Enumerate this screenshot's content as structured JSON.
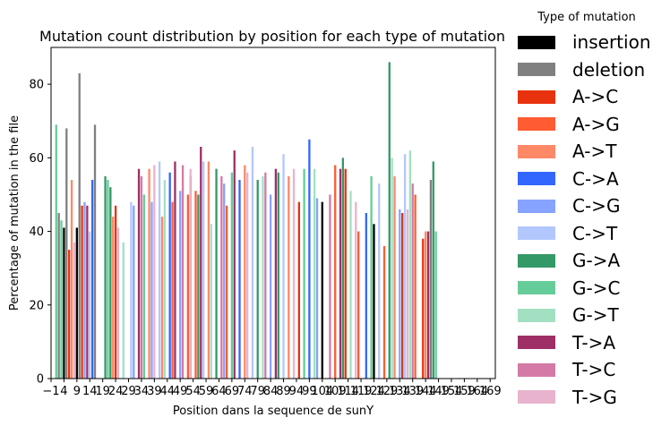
{
  "chart_data": {
    "type": "bar",
    "stacked": false,
    "title": "Mutation count distribution by position for each type of mutation",
    "xlabel": "Position dans la sequence de sunY",
    "ylabel": "Percentage of mutation in the file",
    "xlim": [
      -1,
      171
    ],
    "ylim": [
      0,
      90
    ],
    "grid": false,
    "legend_position": "outside-right",
    "legend_title": "Type of mutation",
    "x_ticks": [
      -1,
      4,
      9,
      14,
      19,
      24,
      29,
      34,
      39,
      44,
      49,
      54,
      59,
      64,
      69,
      74,
      79,
      84,
      89,
      94,
      99,
      104,
      109,
      114,
      119,
      124,
      129,
      134,
      139,
      144,
      149,
      154,
      159,
      164,
      169
    ],
    "x_tick_labels": [
      "−1",
      "4",
      "9",
      "14",
      "19",
      "24",
      "29",
      "34",
      "39",
      "44",
      "49",
      "54",
      "59",
      "64",
      "69",
      "74",
      "79",
      "84",
      "89",
      "94",
      "99",
      "104",
      "109",
      "114",
      "119",
      "124",
      "129",
      "134",
      "139",
      "144",
      "149",
      "154",
      "159",
      "164",
      "169"
    ],
    "y_ticks": [
      0,
      20,
      40,
      60,
      80
    ],
    "series": [
      {
        "name": "insertion",
        "color": "#000000",
        "points": [
          [
            4,
            41
          ],
          [
            9,
            41
          ],
          [
            104,
            48
          ],
          [
            124,
            42
          ]
        ]
      },
      {
        "name": "deletion",
        "color": "#808080",
        "points": [
          [
            2,
            45
          ],
          [
            5,
            68
          ],
          [
            10,
            83
          ],
          [
            16,
            69
          ],
          [
            146,
            54
          ]
        ]
      },
      {
        "name": "A->C",
        "color": "#e8310d",
        "points": [
          [
            6,
            35
          ],
          [
            11,
            47
          ],
          [
            24,
            47
          ],
          [
            53,
            55
          ],
          [
            95,
            48
          ],
          [
            113,
            57
          ],
          [
            135,
            45
          ],
          [
            143,
            38
          ]
        ]
      },
      {
        "name": "A->G",
        "color": "#ff5c33",
        "points": [
          [
            46,
            48
          ],
          [
            52,
            50
          ],
          [
            55,
            51
          ],
          [
            67,
            47
          ],
          [
            109,
            58
          ],
          [
            118,
            40
          ],
          [
            128,
            36
          ],
          [
            140,
            50
          ]
        ]
      },
      {
        "name": "A->T",
        "color": "#ff8866",
        "points": [
          [
            7,
            54
          ],
          [
            23,
            44
          ],
          [
            37,
            57
          ],
          [
            42,
            44
          ],
          [
            60,
            59
          ],
          [
            74,
            58
          ],
          [
            91,
            55
          ],
          [
            132,
            55
          ],
          [
            144,
            40
          ]
        ]
      },
      {
        "name": "C->A",
        "color": "#3366ff",
        "points": [
          [
            15,
            54
          ],
          [
            45,
            56
          ],
          [
            72,
            54
          ],
          [
            99,
            65
          ],
          [
            121,
            45
          ]
        ]
      },
      {
        "name": "C->G",
        "color": "#85a3ff",
        "points": [
          [
            12,
            48
          ],
          [
            31,
            47
          ],
          [
            38,
            48
          ],
          [
            49,
            51
          ],
          [
            66,
            53
          ],
          [
            84,
            50
          ],
          [
            102,
            49
          ],
          [
            134,
            46
          ]
        ]
      },
      {
        "name": "C->T",
        "color": "#b3c7ff",
        "points": [
          [
            14,
            40
          ],
          [
            30,
            48
          ],
          [
            41,
            59
          ],
          [
            58,
            59
          ],
          [
            77,
            63
          ],
          [
            89,
            61
          ],
          [
            126,
            53
          ],
          [
            136,
            61
          ]
        ]
      },
      {
        "name": "G->A",
        "color": "#339966",
        "points": [
          [
            20,
            55
          ],
          [
            22,
            52
          ],
          [
            56,
            50
          ],
          [
            63,
            57
          ],
          [
            79,
            54
          ],
          [
            87,
            56
          ],
          [
            112,
            60
          ],
          [
            130,
            86
          ],
          [
            147,
            59
          ]
        ]
      },
      {
        "name": "G->C",
        "color": "#66cc99",
        "points": [
          [
            1,
            69
          ],
          [
            3,
            43
          ],
          [
            21,
            54
          ],
          [
            35,
            50
          ],
          [
            69,
            56
          ],
          [
            97,
            57
          ],
          [
            123,
            55
          ],
          [
            148,
            40
          ]
        ]
      },
      {
        "name": "G->T",
        "color": "#a3e0c2",
        "points": [
          [
            27,
            37
          ],
          [
            43,
            54
          ],
          [
            61,
            42
          ],
          [
            81,
            55
          ],
          [
            101,
            57
          ],
          [
            115,
            51
          ],
          [
            131,
            60
          ],
          [
            138,
            62
          ]
        ]
      },
      {
        "name": "T->A",
        "color": "#9e2f66",
        "points": [
          [
            13,
            47
          ],
          [
            33,
            57
          ],
          [
            47,
            59
          ],
          [
            57,
            63
          ],
          [
            70,
            62
          ],
          [
            86,
            57
          ],
          [
            111,
            57
          ],
          [
            145,
            40
          ]
        ]
      },
      {
        "name": "T->C",
        "color": "#d47aa6",
        "points": [
          [
            34,
            55
          ],
          [
            50,
            58
          ],
          [
            65,
            55
          ],
          [
            82,
            56
          ],
          [
            107,
            50
          ],
          [
            139,
            53
          ]
        ]
      },
      {
        "name": "T->G",
        "color": "#e8b3cc",
        "points": [
          [
            8,
            37
          ],
          [
            25,
            41
          ],
          [
            39,
            58
          ],
          [
            53,
            57
          ],
          [
            75,
            56
          ],
          [
            93,
            57
          ],
          [
            117,
            48
          ],
          [
            137,
            46
          ]
        ]
      }
    ]
  }
}
